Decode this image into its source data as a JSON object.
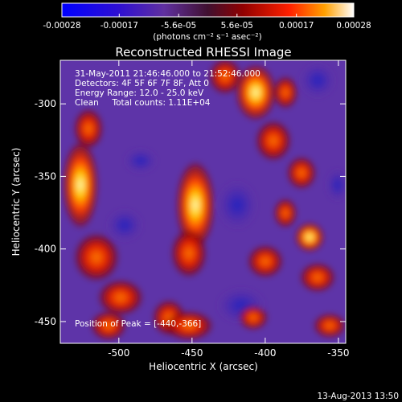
{
  "colorbar": {
    "ticks": [
      "-0.00028",
      "-0.00017",
      "-5.6e-05",
      "5.6e-05",
      "0.00017",
      "0.00028"
    ],
    "tick_values": [
      -0.00028,
      -0.00017,
      -5.6e-05,
      5.6e-05,
      0.00017,
      0.00028
    ],
    "range": [
      -0.00028,
      0.00028
    ],
    "unit_label": "(photons cm⁻² s⁻¹ asec⁻²)"
  },
  "image": {
    "title": "Reconstructed RHESSI Image",
    "info_lines": [
      "31-May-2011 21:46:46.000 to 21:52:46.000",
      "Detectors: 4F 5F 6F 7F 8F, Att 0",
      "Energy Range: 12.0 - 25.0 keV",
      "Clean     Total counts: 1.11E+04"
    ],
    "peak_text": "Position of Peak = [-440,-366]",
    "colors": {
      "low": "#1010c0",
      "mid": "#6a3aa8",
      "high": "#ff3000",
      "peak": "#ffffe0"
    }
  },
  "axes": {
    "xlabel": "Heliocentric X (arcsec)",
    "ylabel": "Heliocentric Y (arcsec)",
    "xticks": [
      "-500",
      "-450",
      "-400",
      "-350"
    ],
    "xtick_values": [
      -500,
      -450,
      -400,
      -350
    ],
    "yticks": [
      "-300",
      "-350",
      "-400",
      "-450"
    ],
    "ytick_values": [
      -300,
      -350,
      -400,
      -450
    ],
    "xlim": [
      -540,
      -345
    ],
    "ylim": [
      -465,
      -270
    ]
  },
  "footer": {
    "timestamp": "13-Aug-2013 13:50"
  }
}
